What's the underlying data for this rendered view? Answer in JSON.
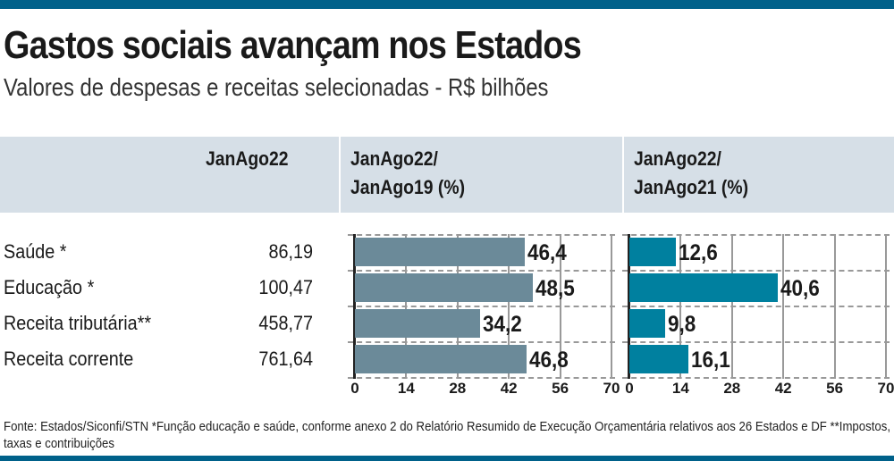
{
  "title": "Gastos sociais avançam nos Estados",
  "subtitle": "Valores de despesas e receitas selecionadas - R$ bilhões",
  "colors": {
    "bar1": "#6b8a99",
    "bar2": "#00809f",
    "bars_top": "#00618a"
  },
  "chart_data": {
    "type": "bar",
    "orientation": "horizontal",
    "categories": [
      "Saúde *",
      "Educação *",
      "Receita tributária**",
      "Receita corrente"
    ],
    "table_column": {
      "header": "JanAgo22",
      "values": [
        "86,19",
        "100,47",
        "458,77",
        "761,64"
      ]
    },
    "series": [
      {
        "name": "JanAgo22/ JanAgo19 (%)",
        "header_lines": [
          "JanAgo22/",
          "JanAgo19 (%)"
        ],
        "values": [
          46.4,
          48.5,
          34.2,
          46.8
        ],
        "labels": [
          "46,4",
          "48,5",
          "34,2",
          "46,8"
        ]
      },
      {
        "name": "JanAgo22/ JanAgo21 (%)",
        "header_lines": [
          "JanAgo22/",
          "JanAgo21 (%)"
        ],
        "values": [
          12.6,
          40.6,
          9.8,
          16.1
        ],
        "labels": [
          "12,6",
          "40,6",
          "9,8",
          "16,1"
        ]
      }
    ],
    "xlim": [
      0,
      70
    ],
    "ticks": [
      "0",
      "14",
      "28",
      "42",
      "56",
      "70"
    ]
  },
  "footer": "Fonte: Estados/Siconfi/STN *Função educação e saúde, conforme anexo 2 do Relatório Resumido de Execução Orçamentária relativos aos 26 Estados e DF **Impostos, taxas e contribuições"
}
